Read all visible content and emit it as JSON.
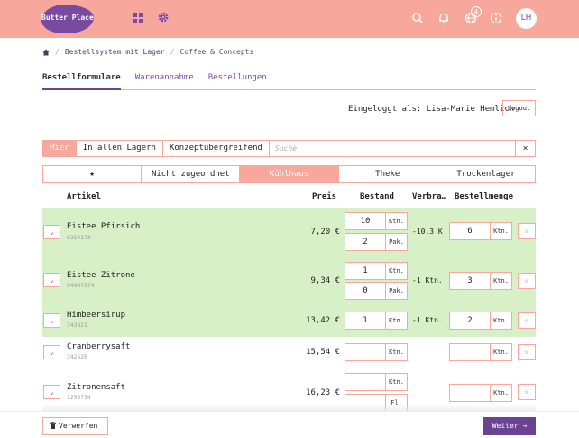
{
  "header": {
    "logo_text": "Butter Place",
    "notification_count": "4",
    "avatar_initials": "LH",
    "brand_color": "#f7a79b",
    "accent_color": "#6a4393"
  },
  "breadcrumb": {
    "items": [
      "Bestellsystem mit Lager",
      "Coffee & Concepts"
    ]
  },
  "tabs": [
    {
      "label": "Bestellformulare",
      "active": true
    },
    {
      "label": "Warenannahme",
      "active": false
    },
    {
      "label": "Bestellungen",
      "active": false
    }
  ],
  "session": {
    "logged_in_as": "Eingeloggt als: Lisa-Marie Hemlich",
    "logout_label": "Logout"
  },
  "filters": {
    "buttons": [
      "Hier",
      "In allen Lagern",
      "Konzeptübergreifend"
    ],
    "active": "Hier",
    "search_placeholder": "Suche",
    "clear_label": "×"
  },
  "categories": [
    {
      "label": "★"
    },
    {
      "label": "Nicht zugeordnet"
    },
    {
      "label": "Kühlhaus",
      "active": true
    },
    {
      "label": "Theke"
    },
    {
      "label": "Trockenlager"
    }
  ],
  "table": {
    "headers": {
      "artikel": "Artikel",
      "preis": "Preis",
      "bestand": "Bestand",
      "verbrauch": "Verbra…",
      "bestellmenge": "Bestellmenge"
    },
    "rows": [
      {
        "name": "Eistee Pfirsich",
        "number": "6254373",
        "price": "7,20 €",
        "stock": [
          {
            "value": "10",
            "unit": "Ktn."
          },
          {
            "value": "2",
            "unit": "Pak."
          }
        ],
        "consumption": "-10,3 K",
        "order": {
          "value": "6",
          "unit": "Ktn."
        }
      },
      {
        "name": "Eistee Zitrone",
        "number": "94947974",
        "price": "9,34 €",
        "stock": [
          {
            "value": "1",
            "unit": "Ktn."
          },
          {
            "value": "0",
            "unit": "Pak."
          }
        ],
        "consumption": "-1 Ktn.",
        "order": {
          "value": "3",
          "unit": "Ktn."
        }
      },
      {
        "name": "Himbeersirup",
        "number": "343621",
        "price": "13,42 €",
        "stock": [
          {
            "value": "1",
            "unit": "Ktn."
          }
        ],
        "consumption": "-1 Ktn.",
        "order": {
          "value": "2",
          "unit": "Ktn."
        }
      },
      {
        "name": "Cranberrysaft",
        "number": "342526",
        "price": "15,54 €",
        "stock": [
          {
            "value": "",
            "unit": "Ktn."
          }
        ],
        "consumption": "",
        "order": {
          "value": "",
          "unit": "Ktn."
        }
      },
      {
        "name": "Zitronensaft",
        "number": "1253734",
        "price": "16,23 €",
        "stock": [
          {
            "value": "",
            "unit": "Ktn."
          },
          {
            "value": "",
            "unit": "Fl."
          }
        ],
        "consumption": "",
        "order": {
          "value": "",
          "unit": "Ktn."
        }
      }
    ]
  },
  "footer": {
    "discard_label": "Verwerfen",
    "next_label": "Weiter →"
  }
}
